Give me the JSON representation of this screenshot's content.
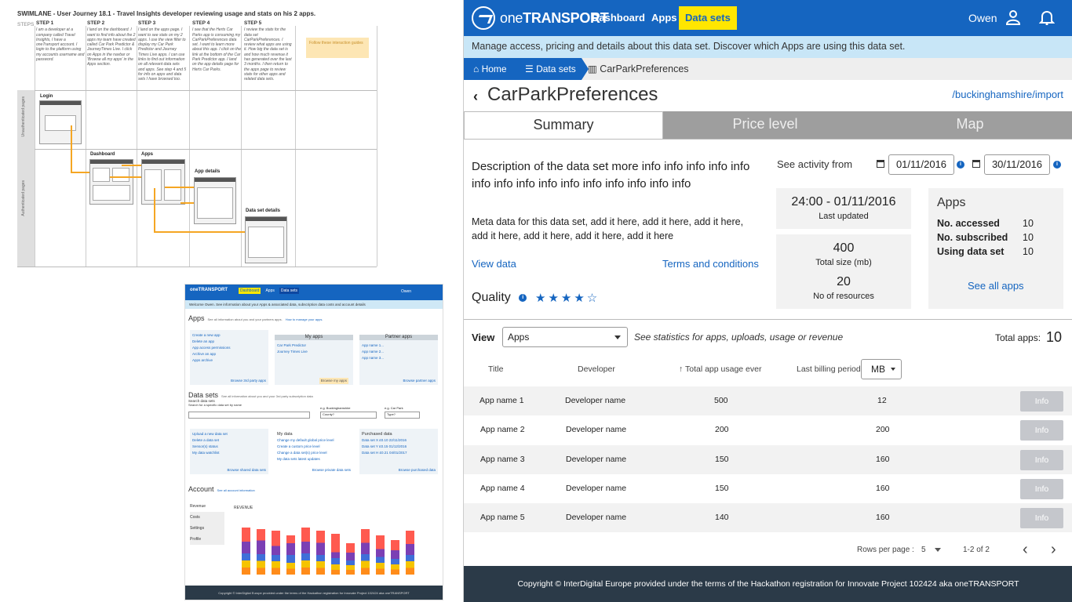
{
  "swimlane": {
    "title": "SWIMLANE - User Journey 18.1 - Travel Insights developer reviewing usage and stats on his 2 apps.",
    "steps_label": "STEPS",
    "steps": [
      {
        "title": "STEP 1",
        "text": "I am a developer at a company called Travel Insights, I have a oneTransport account. I login to the platform using my accounts username and password."
      },
      {
        "title": "STEP 2",
        "text": "I land on the dashboard. I want to find info about the 2 apps my team have created called Car Park Predictor & JourneyTimes Live. I click on Apps in the navbar or 'Browse all my apps' in the Apps section."
      },
      {
        "title": "STEP 3",
        "text": "I land on the apps page. I want to see stats on my 2 apps. I use the view filter to display my Car Park Predictor and Journey Times Live apps. I can use links to find out information on all relevant data sets and apps. See step 4 and 5 for info on apps and data sets I have browsed too."
      },
      {
        "title": "STEP 4",
        "text": "I see that the Herts Car Parks app is consuming my CarParkPreferences data set. I want to learn more about this app. I click on the link at the bottom of the Car Park Predictor app. I land on the app details page for Herts Car Parks."
      },
      {
        "title": "STEP 5",
        "text": "I review the stats for the data set CarParkPreferences. I review what apps are using it. How big the data set is and how much revenue it has generated over the last 3 months. I then return to the apps page to review stats for other apps and related data sets."
      }
    ],
    "sticky": "Follow these interaction guides",
    "lane_unauth": "Unauthenticated pages",
    "lane_auth": "Authenticated pages",
    "screens": {
      "login": "Login",
      "dashboard": "Dashboard",
      "apps": "Apps",
      "app_details": "App details",
      "data_set_details": "Data set details"
    }
  },
  "mini": {
    "logo": "oneTRANSPORT",
    "nav": [
      "Dashboard",
      "Apps",
      "Data sets"
    ],
    "user": "Owen",
    "banner": "Welcome Owen. See information about your Apps & associated data, subscription data costs and account details",
    "apps_h": "Apps",
    "apps_hint": "See all information about you and your partners apps.",
    "apps_link": "How to manage your apps.",
    "apps_links": [
      "Create a new app",
      "Delete an app",
      "App access permissions",
      "Archive an app",
      "Apps archive"
    ],
    "browse_3rd": "Browse 3rd party apps",
    "my_apps": "My apps",
    "my_apps_items": [
      "Car Park Predictor",
      "Journey Times Live"
    ],
    "browse_my": "Browse my apps",
    "partner_apps": "Partner apps",
    "partner_items": [
      "App name 1...",
      "App name 2...",
      "App name 3..."
    ],
    "browse_partner": "Browse partner apps",
    "datasets_h": "Data sets",
    "datasets_hint": "See all information about you and your 3rd party subscription data",
    "search_label": "Search data sets",
    "search_sub": "Search for a specific data set by name",
    "eg1": "e.g. Buckinghamshire",
    "eg2": "e.g. Car Park",
    "county": "County?",
    "type": "Type?",
    "ds_links": [
      "Upload a new data set",
      "Delete a data set",
      "Sensor(s) status",
      "My data watchlist"
    ],
    "browse_shared": "Browse shared data sets",
    "my_data": "My data",
    "my_data_items": [
      "Change my default global price level",
      "Create a custom price level",
      "Change a data set(s) price level",
      "My data sets latest updates"
    ],
    "browse_private": "Browse private data sets",
    "purchased": "Purchased data",
    "purchased_items": [
      "Data set X  £0.10  22/11/2016",
      "Data set Y  £0.15  01/12/2016",
      "Data set H  £0.21  04/01/2017"
    ],
    "browse_purchased": "Browse purchased data",
    "account_h": "Account",
    "account_link": "See all account information",
    "account_menu": [
      "Revenue",
      "Costs",
      "Settings",
      "Profile"
    ],
    "revenue_title": "REVENUE",
    "footer": "Copyright © InterDigital Europe provided under the terms of the Hackathon registration for Innovate Project 102424 aka oneTRANSPORT"
  },
  "header": {
    "logo_prefix": "one",
    "logo_suffix": "TRANSPORT",
    "nav": {
      "dashboard": "Dashboard",
      "apps": "Apps",
      "datasets": "Data sets"
    },
    "user": "Owen",
    "brand_color": "#1565c0",
    "active_color": "#ffe600"
  },
  "banner": "Manage access, pricing and details about this data set. Discover which Apps are using this data set.",
  "breadcrumb": {
    "home": "Home",
    "datasets": "Data sets",
    "current": "CarParkPreferences"
  },
  "title": "CarParkPreferences",
  "path": "/buckinghamshire/import",
  "tabs": {
    "summary": "Summary",
    "price": "Price level",
    "map": "Map"
  },
  "summary": {
    "description": "Description of the data set more info info info info info info info info info info info info info info info",
    "meta": "Meta data for this data set, add it here, add it here, add it here, add it here, add it here, add it here, add it here",
    "view_data": "View data",
    "terms": "Terms and conditions",
    "quality_label": "Quality",
    "quality_rating": 4,
    "quality_max": 5,
    "stars_text": "★★★★☆",
    "activity_label": "See activity from",
    "date_from": "01/11/2016",
    "date_to": "30/11/2016",
    "last_updated": "24:00 -  01/11/2016",
    "last_updated_label": "Last updated",
    "total_size": "400",
    "total_size_label": "Total size (mb)",
    "resources": "20",
    "resources_label": "No of resources",
    "apps_title": "Apps",
    "no_accessed_label": "No. accessed",
    "no_accessed": "10",
    "no_subscribed_label": "No. subscribed",
    "no_subscribed": "10",
    "using_label": "Using data set",
    "using": "10",
    "see_all_apps": "See all apps"
  },
  "view": {
    "label": "View",
    "selected": "Apps",
    "hint": "See statistics for apps, uploads, usage or revenue",
    "total_label": "Total apps:",
    "total": "10"
  },
  "table": {
    "headers": {
      "title": "Title",
      "developer": "Developer",
      "usage": "Total app usage ever",
      "billing": "Last billing period"
    },
    "unit": "MB",
    "info_label": "Info",
    "rows": [
      {
        "title": "App name 1",
        "developer": "Developer name",
        "usage": "500",
        "billing": "12"
      },
      {
        "title": "App name 2",
        "developer": "Developer name",
        "usage": "200",
        "billing": "200"
      },
      {
        "title": "App name 3",
        "developer": "Developer name",
        "usage": "150",
        "billing": "160"
      },
      {
        "title": "App name 4",
        "developer": "Developer name",
        "usage": "150",
        "billing": "160"
      },
      {
        "title": "App name 5",
        "developer": "Developer name",
        "usage": "140",
        "billing": "160"
      }
    ]
  },
  "pager": {
    "rows_label": "Rows per page :",
    "rows_value": "5",
    "range": "1-2 of 2",
    "prev": "‹",
    "next": "›"
  },
  "footer": "Copyright © InterDigital Europe provided under the terms of the Hackathon registration for Innovate Project 102424 aka oneTRANSPORT"
}
